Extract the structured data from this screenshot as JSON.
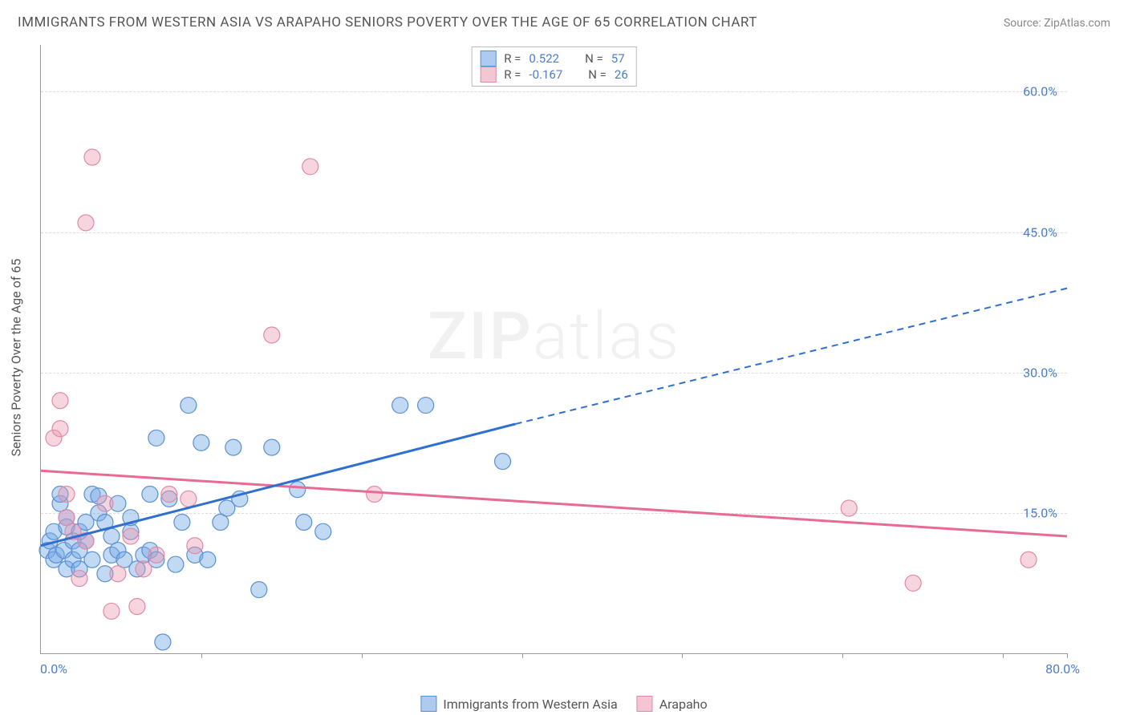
{
  "title": "IMMIGRANTS FROM WESTERN ASIA VS ARAPAHO SENIORS POVERTY OVER THE AGE OF 65 CORRELATION CHART",
  "source_label": "Source: ",
  "source_name": "ZipAtlas.com",
  "watermark_zip": "ZIP",
  "watermark_atlas": "atlas",
  "y_axis_label": "Seniors Poverty Over the Age of 65",
  "chart": {
    "type": "scatter",
    "xlim": [
      0,
      80
    ],
    "ylim": [
      0,
      65
    ],
    "y_ticks": [
      15,
      30,
      45,
      60
    ],
    "y_tick_labels": [
      "15.0%",
      "30.0%",
      "45.0%",
      "60.0%"
    ],
    "x_start_label": "0.0%",
    "x_end_label": "80.0%",
    "x_tick_positions": [
      12.5,
      25,
      37.5,
      50,
      62.5,
      75,
      80
    ],
    "background_color": "#ffffff",
    "grid_color": "#dddddd"
  },
  "series": {
    "A": {
      "name": "Immigrants from Western Asia",
      "color_fill_rgba": "rgba(120,170,230,0.45)",
      "color_stroke": "#5a8fd0",
      "color_swatch_fill": "#aecbef",
      "color_swatch_border": "#5a8fd0",
      "color_line": "#2f6fd0",
      "marker_radius": 10,
      "R": "0.522",
      "N": "57",
      "trend": {
        "x1": 0,
        "y1": 11.5,
        "x2": 37,
        "y2": 24.5,
        "ext_x": 80,
        "ext_y": 39.0
      },
      "points": [
        [
          0.5,
          11
        ],
        [
          0.7,
          12
        ],
        [
          1,
          13
        ],
        [
          1,
          10
        ],
        [
          1.2,
          10.5
        ],
        [
          1.5,
          16
        ],
        [
          1.5,
          17
        ],
        [
          1.8,
          11
        ],
        [
          2,
          13.5
        ],
        [
          2,
          14.5
        ],
        [
          2,
          9
        ],
        [
          2.5,
          10
        ],
        [
          2.5,
          12
        ],
        [
          3,
          11
        ],
        [
          3,
          9
        ],
        [
          3,
          13
        ],
        [
          3.5,
          14
        ],
        [
          3.5,
          12
        ],
        [
          4,
          17
        ],
        [
          4,
          10
        ],
        [
          4.5,
          15
        ],
        [
          4.5,
          16.8
        ],
        [
          5,
          14
        ],
        [
          5,
          8.5
        ],
        [
          5.5,
          10.5
        ],
        [
          5.5,
          12.5
        ],
        [
          6,
          11
        ],
        [
          6,
          16
        ],
        [
          6.5,
          10
        ],
        [
          7,
          13
        ],
        [
          7,
          14.5
        ],
        [
          7.5,
          9
        ],
        [
          8,
          10.5
        ],
        [
          8.5,
          17
        ],
        [
          8.5,
          11
        ],
        [
          9,
          23
        ],
        [
          9,
          10
        ],
        [
          9.5,
          1.2
        ],
        [
          10,
          16.5
        ],
        [
          10.5,
          9.5
        ],
        [
          11,
          14
        ],
        [
          11.5,
          26.5
        ],
        [
          12,
          10.5
        ],
        [
          12.5,
          22.5
        ],
        [
          13,
          10
        ],
        [
          14,
          14
        ],
        [
          14.5,
          15.5
        ],
        [
          15,
          22
        ],
        [
          15.5,
          16.5
        ],
        [
          17,
          6.8
        ],
        [
          18,
          22
        ],
        [
          20,
          17.5
        ],
        [
          20.5,
          14
        ],
        [
          22,
          13
        ],
        [
          28,
          26.5
        ],
        [
          30,
          26.5
        ],
        [
          36,
          20.5
        ]
      ]
    },
    "B": {
      "name": "Arapaho",
      "color_fill_rgba": "rgba(235,150,175,0.40)",
      "color_stroke": "#e08aa5",
      "color_swatch_fill": "#f4c6d4",
      "color_swatch_border": "#e08aa5",
      "color_line": "#e86b95",
      "marker_radius": 10,
      "R": "-0.167",
      "N": "26",
      "trend": {
        "x1": 0,
        "y1": 19.5,
        "x2": 80,
        "y2": 12.5
      },
      "points": [
        [
          1,
          23
        ],
        [
          1.5,
          24
        ],
        [
          1.5,
          27
        ],
        [
          2,
          17
        ],
        [
          2,
          14.5
        ],
        [
          2.5,
          13
        ],
        [
          3,
          8
        ],
        [
          3.5,
          12
        ],
        [
          3.5,
          46
        ],
        [
          4,
          53
        ],
        [
          5,
          16
        ],
        [
          5.5,
          4.5
        ],
        [
          6,
          8.5
        ],
        [
          7,
          12.5
        ],
        [
          7.5,
          5
        ],
        [
          8,
          9
        ],
        [
          9,
          10.5
        ],
        [
          10,
          17
        ],
        [
          11.5,
          16.5
        ],
        [
          12,
          11.5
        ],
        [
          18,
          34
        ],
        [
          21,
          52
        ],
        [
          26,
          17
        ],
        [
          63,
          15.5
        ],
        [
          68,
          7.5
        ],
        [
          77,
          10
        ]
      ]
    }
  },
  "legend_stats": {
    "r_label": "R =",
    "n_label": "N ="
  }
}
